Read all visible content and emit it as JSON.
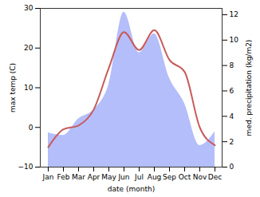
{
  "chart_data": {
    "type": "line",
    "x_label": "date (month)",
    "y_label": "max temp (C)",
    "y2_label": "med. precipitation (kg/m2)",
    "categories": [
      "Jan",
      "Feb",
      "Mar",
      "Apr",
      "May",
      "Jun",
      "Jul",
      "Aug",
      "Sep",
      "Oct",
      "Nov",
      "Dec"
    ],
    "ylim": [
      -10,
      30
    ],
    "yticks": [
      -10,
      0,
      10,
      20,
      30
    ],
    "y2lim": [
      0,
      12.5
    ],
    "y2ticks": [
      0,
      2,
      4,
      6,
      8,
      10,
      12
    ],
    "grid": false,
    "series": [
      {
        "name": "med. precipitation (kg/m2)",
        "type": "area",
        "axis": "y2",
        "color": "#b4befa",
        "values": [
          2.7,
          2.5,
          3.8,
          4.5,
          6.5,
          12.2,
          9.0,
          10.5,
          7.0,
          5.0,
          1.7,
          2.8
        ]
      },
      {
        "name": "max temp (C)",
        "type": "line",
        "color": "#c85a5a",
        "values": [
          -5,
          -0.5,
          0.5,
          4.5,
          15,
          24,
          19.5,
          24.5,
          17,
          14,
          0,
          -4.5
        ]
      }
    ]
  }
}
